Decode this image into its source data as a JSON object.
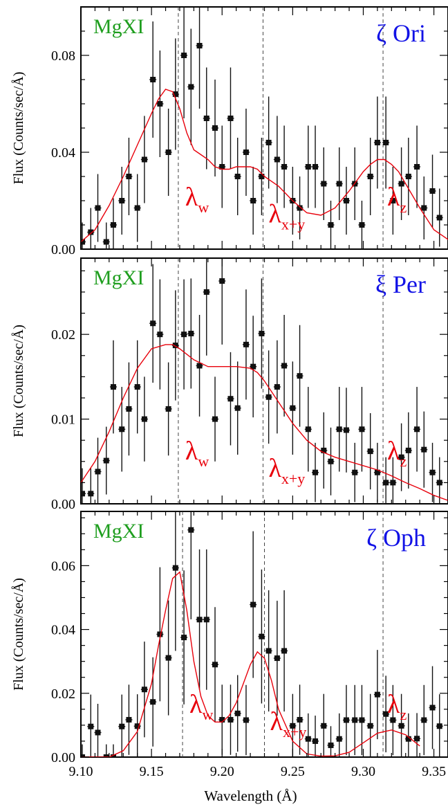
{
  "chart_data": [
    {
      "type": "scatter",
      "ion_label": "MgXI",
      "star_label": "ζ Ori",
      "ylabel": "Flux (Counts/sec/Å)",
      "xlabel": "",
      "xlim": [
        9.1,
        9.36
      ],
      "ylim": [
        0.0,
        0.1
      ],
      "yticks": [
        0.0,
        0.04,
        0.08
      ],
      "ytick_labels": [
        "0.00",
        "0.04",
        "0.08"
      ],
      "line_markers": [
        {
          "label": "λ",
          "sub": "w",
          "x": 9.169
        },
        {
          "label": "λ",
          "sub": "x+y",
          "x": 9.229
        },
        {
          "label": "λ",
          "sub": "z",
          "x": 9.314
        }
      ],
      "series": [
        {
          "kind": "data",
          "x": [
            9.101,
            9.107,
            9.112,
            9.118,
            9.123,
            9.129,
            9.134,
            9.14,
            9.145,
            9.151,
            9.156,
            9.162,
            9.167,
            9.173,
            9.178,
            9.184,
            9.189,
            9.195,
            9.2,
            9.206,
            9.211,
            9.217,
            9.222,
            9.228,
            9.233,
            9.239,
            9.244,
            9.25,
            9.255,
            9.261,
            9.266,
            9.272,
            9.277,
            9.283,
            9.288,
            9.294,
            9.299,
            9.305,
            9.31,
            9.316,
            9.321,
            9.327,
            9.332,
            9.338,
            9.343,
            9.349,
            9.354
          ],
          "y": [
            0.003,
            0.007,
            0.017,
            0.003,
            0.01,
            0.02,
            0.03,
            0.017,
            0.037,
            0.07,
            0.06,
            0.04,
            0.064,
            0.08,
            0.067,
            0.084,
            0.054,
            0.05,
            0.034,
            0.054,
            0.03,
            0.04,
            0.02,
            0.03,
            0.044,
            0.037,
            0.034,
            0.02,
            0.017,
            0.034,
            0.034,
            0.027,
            0.01,
            0.027,
            0.02,
            0.027,
            0.01,
            0.03,
            0.044,
            0.044,
            0.02,
            0.027,
            0.03,
            0.034,
            0.017,
            0.024,
            0.013
          ],
          "err": [
            0.008,
            0.01,
            0.014,
            0.008,
            0.011,
            0.014,
            0.016,
            0.014,
            0.018,
            0.024,
            0.022,
            0.018,
            0.023,
            0.026,
            0.024,
            0.026,
            0.021,
            0.02,
            0.017,
            0.021,
            0.016,
            0.018,
            0.014,
            0.016,
            0.019,
            0.018,
            0.017,
            0.014,
            0.013,
            0.017,
            0.017,
            0.015,
            0.01,
            0.015,
            0.014,
            0.015,
            0.01,
            0.016,
            0.019,
            0.019,
            0.014,
            0.015,
            0.016,
            0.017,
            0.013,
            0.015,
            0.012
          ]
        },
        {
          "kind": "model",
          "x": [
            9.1,
            9.11,
            9.12,
            9.13,
            9.14,
            9.15,
            9.155,
            9.16,
            9.165,
            9.17,
            9.175,
            9.18,
            9.185,
            9.19,
            9.195,
            9.2,
            9.205,
            9.21,
            9.215,
            9.22,
            9.225,
            9.23,
            9.24,
            9.25,
            9.26,
            9.27,
            9.28,
            9.29,
            9.3,
            9.305,
            9.31,
            9.315,
            9.32,
            9.325,
            9.33,
            9.34,
            9.35,
            9.36
          ],
          "y": [
            0.003,
            0.008,
            0.018,
            0.03,
            0.043,
            0.056,
            0.062,
            0.066,
            0.065,
            0.058,
            0.048,
            0.041,
            0.039,
            0.037,
            0.034,
            0.033,
            0.033,
            0.034,
            0.034,
            0.034,
            0.033,
            0.03,
            0.026,
            0.02,
            0.015,
            0.014,
            0.017,
            0.024,
            0.032,
            0.035,
            0.037,
            0.037,
            0.035,
            0.032,
            0.027,
            0.017,
            0.008,
            0.004
          ]
        }
      ]
    },
    {
      "type": "scatter",
      "ion_label": "MgXI",
      "star_label": "ξ Per",
      "ylabel": "Flux (Counts/sec/Å)",
      "xlabel": "",
      "xlim": [
        9.1,
        9.36
      ],
      "ylim": [
        0.0,
        0.029
      ],
      "yticks": [
        0.0,
        0.01,
        0.02
      ],
      "ytick_labels": [
        "0.00",
        "0.01",
        "0.02"
      ],
      "line_markers": [
        {
          "label": "λ",
          "sub": "w",
          "x": 9.169
        },
        {
          "label": "λ",
          "sub": "x+y",
          "x": 9.229
        },
        {
          "label": "λ",
          "sub": "z",
          "x": 9.314
        }
      ],
      "series": [
        {
          "kind": "data",
          "x": [
            9.101,
            9.107,
            9.112,
            9.118,
            9.123,
            9.129,
            9.134,
            9.14,
            9.145,
            9.151,
            9.156,
            9.162,
            9.167,
            9.173,
            9.178,
            9.184,
            9.189,
            9.195,
            9.2,
            9.206,
            9.211,
            9.217,
            9.222,
            9.228,
            9.233,
            9.239,
            9.244,
            9.25,
            9.255,
            9.261,
            9.266,
            9.272,
            9.277,
            9.283,
            9.288,
            9.294,
            9.299,
            9.305,
            9.31,
            9.316,
            9.321,
            9.327,
            9.332,
            9.338,
            9.343,
            9.349,
            9.354
          ],
          "y": [
            0.0012,
            0.0012,
            0.0038,
            0.0051,
            0.0138,
            0.0088,
            0.0112,
            0.0138,
            0.01,
            0.0213,
            0.02,
            0.0112,
            0.0187,
            0.02,
            0.0201,
            0.0163,
            0.025,
            0.01,
            0.0263,
            0.0124,
            0.0113,
            0.0188,
            0.0162,
            0.0201,
            0.0126,
            0.0138,
            0.0163,
            0.0113,
            0.0151,
            0.0088,
            0.0037,
            0.0063,
            0.005,
            0.0088,
            0.0087,
            0.0037,
            0.0088,
            0.0062,
            0.0037,
            0.0025,
            0.0025,
            0.0055,
            0.0063,
            0.0088,
            0.0064,
            0.0037,
            0.0025
          ],
          "err": [
            0.003,
            0.003,
            0.004,
            0.004,
            0.0055,
            0.005,
            0.0055,
            0.0055,
            0.005,
            0.007,
            0.0065,
            0.0055,
            0.0065,
            0.0065,
            0.0065,
            0.006,
            0.0075,
            0.005,
            0.0075,
            0.0055,
            0.0055,
            0.0065,
            0.006,
            0.0065,
            0.0055,
            0.0055,
            0.006,
            0.0055,
            0.006,
            0.005,
            0.0035,
            0.0045,
            0.004,
            0.005,
            0.005,
            0.0035,
            0.005,
            0.0045,
            0.0035,
            0.003,
            0.003,
            0.004,
            0.0045,
            0.005,
            0.0045,
            0.0035,
            0.003
          ]
        },
        {
          "kind": "model",
          "x": [
            9.1,
            9.11,
            9.12,
            9.13,
            9.14,
            9.15,
            9.16,
            9.165,
            9.17,
            9.18,
            9.19,
            9.2,
            9.21,
            9.22,
            9.225,
            9.23,
            9.24,
            9.25,
            9.26,
            9.27,
            9.28,
            9.29,
            9.3,
            9.31,
            9.32,
            9.33,
            9.34,
            9.35,
            9.36
          ],
          "y": [
            0.0025,
            0.005,
            0.0085,
            0.0125,
            0.016,
            0.0183,
            0.0188,
            0.0188,
            0.0183,
            0.017,
            0.0162,
            0.0162,
            0.0162,
            0.016,
            0.0155,
            0.0145,
            0.012,
            0.0095,
            0.0075,
            0.0062,
            0.0055,
            0.005,
            0.0045,
            0.004,
            0.0033,
            0.0025,
            0.0018,
            0.001,
            0.0004
          ]
        }
      ]
    },
    {
      "type": "scatter",
      "ion_label": "MgXI",
      "star_label": "ζ Oph",
      "ylabel": "Flux (Counts/sec/Å)",
      "xlabel": "Wavelength (Å)",
      "xlim": [
        9.1,
        9.36
      ],
      "ylim": [
        0.0,
        0.077
      ],
      "yticks": [
        0.0,
        0.02,
        0.04,
        0.06
      ],
      "ytick_labels": [
        "0.00",
        "0.02",
        "0.04",
        "0.06"
      ],
      "xticks": [
        9.1,
        9.15,
        9.2,
        9.25,
        9.3,
        9.35
      ],
      "xtick_labels": [
        "9.10",
        "9.15",
        "9.20",
        "9.25",
        "9.30",
        "9.35"
      ],
      "line_markers": [
        {
          "label": "λ",
          "sub": "w",
          "x": 9.172
        },
        {
          "label": "λ",
          "sub": "x+y",
          "x": 9.23
        },
        {
          "label": "λ",
          "sub": "z",
          "x": 9.314
        }
      ],
      "series": [
        {
          "kind": "data",
          "x": [
            9.101,
            9.107,
            9.112,
            9.118,
            9.123,
            9.129,
            9.134,
            9.14,
            9.145,
            9.151,
            9.156,
            9.162,
            9.167,
            9.173,
            9.178,
            9.184,
            9.189,
            9.195,
            9.2,
            9.206,
            9.211,
            9.217,
            9.222,
            9.228,
            9.233,
            9.239,
            9.244,
            9.25,
            9.255,
            9.261,
            9.266,
            9.272,
            9.277,
            9.283,
            9.288,
            9.294,
            9.299,
            9.305,
            9.31,
            9.316,
            9.321,
            9.327,
            9.332,
            9.338,
            9.343,
            9.349,
            9.354
          ],
          "y": [
            0.0,
            0.0096,
            0.0077,
            0.0,
            0.0,
            0.0096,
            0.0117,
            0.0097,
            0.0212,
            0.0173,
            0.0385,
            0.0311,
            0.0593,
            0.0375,
            0.0712,
            0.0431,
            0.0431,
            0.029,
            0.0117,
            0.0117,
            0.0137,
            0.0116,
            0.0478,
            0.0378,
            0.0333,
            0.031,
            0.0333,
            0.0098,
            0.0117,
            0.0057,
            0.005,
            0.0098,
            0.0037,
            0.0057,
            0.0116,
            0.0116,
            0.0116,
            0.0098,
            0.0196,
            0.0135,
            0.0116,
            0.0098,
            0.0057,
            0.0058,
            0.0116,
            0.0155,
            0.0097
          ],
          "err": [
            0.004,
            0.01,
            0.009,
            0.004,
            0.004,
            0.01,
            0.011,
            0.01,
            0.015,
            0.014,
            0.021,
            0.018,
            0.026,
            0.021,
            0.028,
            0.022,
            0.022,
            0.018,
            0.011,
            0.011,
            0.012,
            0.011,
            0.023,
            0.021,
            0.019,
            0.018,
            0.019,
            0.01,
            0.011,
            0.008,
            0.008,
            0.01,
            0.006,
            0.008,
            0.011,
            0.011,
            0.011,
            0.01,
            0.014,
            0.012,
            0.011,
            0.01,
            0.008,
            0.008,
            0.011,
            0.013,
            0.01
          ]
        },
        {
          "kind": "model",
          "x": [
            9.1,
            9.12,
            9.13,
            9.14,
            9.15,
            9.155,
            9.16,
            9.165,
            9.17,
            9.175,
            9.18,
            9.185,
            9.19,
            9.195,
            9.2,
            9.205,
            9.21,
            9.215,
            9.22,
            9.225,
            9.23,
            9.235,
            9.24,
            9.25,
            9.26,
            9.27,
            9.28,
            9.29,
            9.3,
            9.31,
            9.32,
            9.33,
            9.34
          ],
          "y": [
            0.0,
            0.0,
            0.002,
            0.008,
            0.023,
            0.035,
            0.046,
            0.056,
            0.058,
            0.046,
            0.03,
            0.019,
            0.013,
            0.011,
            0.011,
            0.013,
            0.017,
            0.023,
            0.029,
            0.033,
            0.031,
            0.024,
            0.015,
            0.005,
            0.001,
            0.0003,
            0.0004,
            0.0015,
            0.0045,
            0.0075,
            0.0085,
            0.007,
            0.0035
          ]
        }
      ]
    }
  ],
  "colors": {
    "data": "#111111",
    "model": "#e8000b",
    "ion_label": "#1f9e1f",
    "star_label": "#1212e6",
    "line_label": "#e8000b",
    "dashed": "#444444"
  }
}
